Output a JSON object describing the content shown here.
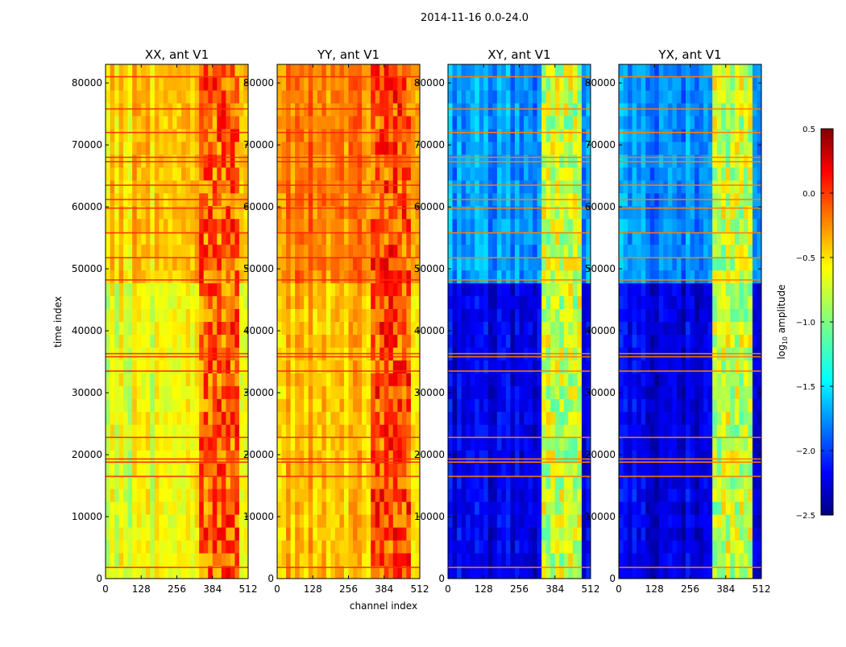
{
  "chart_data": {
    "type": "heatmap",
    "title": "2014-11-16 0.0-24.0",
    "xlabel": "channel index",
    "ylabel": "time index",
    "xlim": [
      0,
      512
    ],
    "ylim": [
      0,
      83000
    ],
    "x_ticks": [
      "0",
      "128",
      "256",
      "384",
      "512"
    ],
    "y_ticks": [
      "0",
      "10000",
      "20000",
      "30000",
      "40000",
      "50000",
      "60000",
      "70000",
      "80000"
    ],
    "panels": [
      {
        "title": "XX, ant V1",
        "base_level": -0.7,
        "rfi_level": -0.15
      },
      {
        "title": "YY, ant V1",
        "base_level": -0.45,
        "rfi_level": -0.1
      },
      {
        "title": "XY, ant V1",
        "base_level": -2.2,
        "rfi_level": -0.8
      },
      {
        "title": "YX, ant V1",
        "base_level": -2.2,
        "rfi_level": -0.8
      }
    ],
    "rfi_channel_range": [
      330,
      480
    ],
    "flag_rows": [
      1800,
      16500,
      18800,
      19300,
      22800,
      33500,
      35800,
      36300,
      48200,
      51800,
      55800,
      59800,
      61200,
      63500,
      67300,
      68000,
      72000,
      75800,
      81000
    ],
    "colorbar": {
      "label": "log₁₀ amplitude",
      "range": [
        -2.5,
        0.5
      ],
      "ticks": [
        "0.5",
        "0.0",
        "−0.5",
        "−1.0",
        "−1.5",
        "−2.0",
        "−2.5"
      ]
    }
  }
}
